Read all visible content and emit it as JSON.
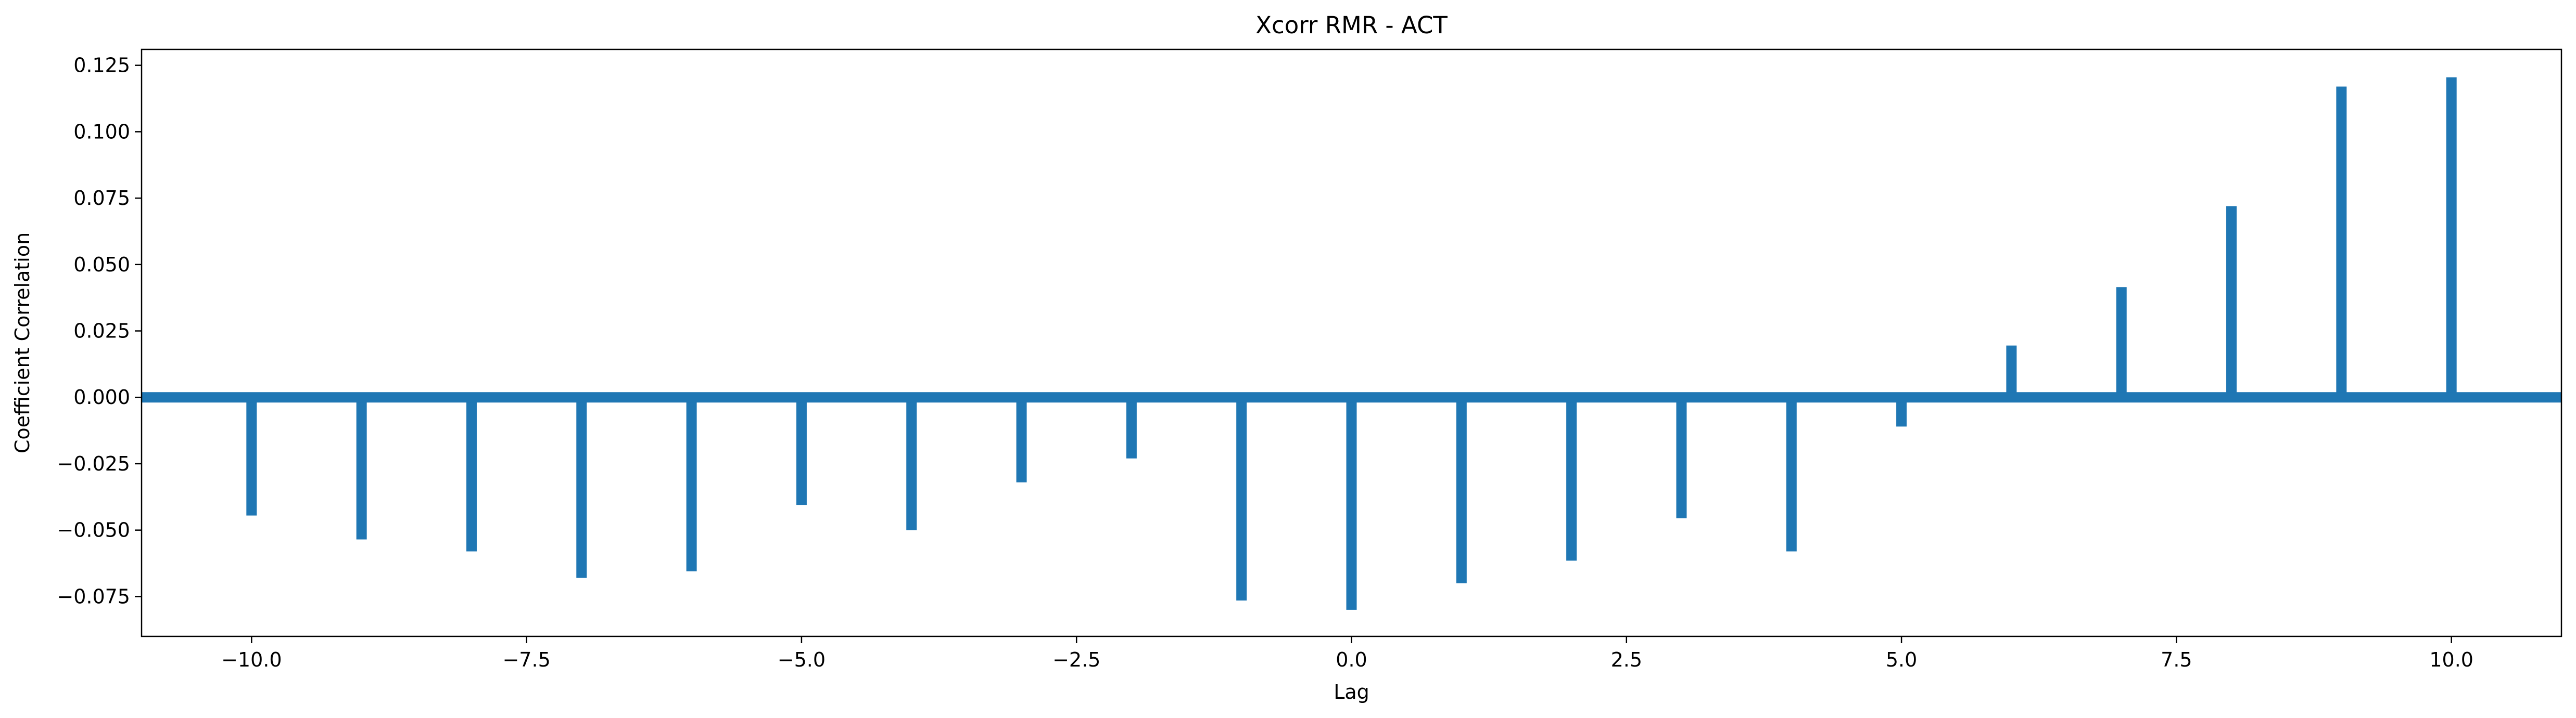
{
  "chart_data": {
    "type": "bar",
    "title": "Xcorr RMR - ACT",
    "xlabel": "Lag",
    "ylabel": "Coefficient Correlation",
    "xlim": [
      -11.0,
      11.0
    ],
    "ylim": [
      -0.09,
      0.131
    ],
    "grid": false,
    "x": [
      -10,
      -9,
      -8,
      -7,
      -6,
      -5,
      -4,
      -3,
      -2,
      -1,
      0,
      1,
      2,
      3,
      4,
      5,
      6,
      7,
      8,
      9,
      10
    ],
    "values": [
      -0.0445,
      -0.0535,
      -0.058,
      -0.068,
      -0.0655,
      -0.0405,
      -0.05,
      -0.032,
      -0.023,
      -0.0765,
      -0.08,
      -0.07,
      -0.0615,
      -0.0455,
      -0.058,
      -0.011,
      0.0195,
      0.0415,
      0.072,
      0.117,
      0.1205
    ],
    "baseline_value": 0.0,
    "xticks": [
      -10.0,
      -7.5,
      -5.0,
      -2.5,
      0.0,
      2.5,
      5.0,
      7.5,
      10.0
    ],
    "xtick_labels": [
      "−10.0",
      "−7.5",
      "−5.0",
      "−2.5",
      "0.0",
      "2.5",
      "5.0",
      "7.5",
      "10.0"
    ],
    "yticks": [
      -0.075,
      -0.05,
      -0.025,
      0.0,
      0.025,
      0.05,
      0.075,
      0.1,
      0.125
    ],
    "ytick_labels": [
      "−0.075",
      "−0.050",
      "−0.025",
      "0.000",
      "0.025",
      "0.050",
      "0.075",
      "0.100",
      "0.125"
    ],
    "color": "#1f77b4"
  }
}
